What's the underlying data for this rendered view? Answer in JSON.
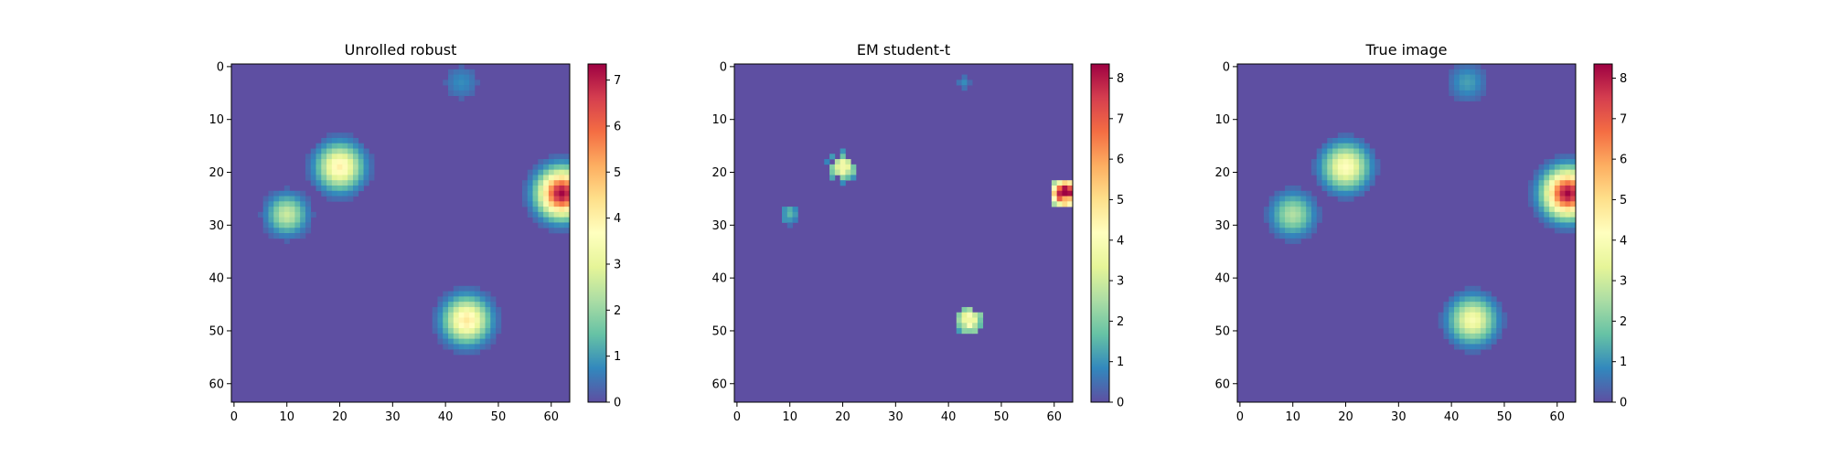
{
  "figure": {
    "panels": [
      {
        "title": "Unrolled robust"
      },
      {
        "title": "EM student-t"
      },
      {
        "title": "True image"
      }
    ]
  },
  "chart_data": [
    {
      "type": "heatmap",
      "title": "Unrolled robust",
      "grid_size": 64,
      "xlim": [
        -0.5,
        63.5
      ],
      "ylim": [
        63.5,
        -0.5
      ],
      "x_ticks": [
        0,
        10,
        20,
        30,
        40,
        50,
        60
      ],
      "y_ticks": [
        0,
        10,
        20,
        30,
        40,
        50,
        60
      ],
      "colormap": "Spectral_r",
      "background_color": "#5e4fa2",
      "colorbar": {
        "min": 0,
        "max": 7.35,
        "ticks": [
          0,
          1,
          2,
          3,
          4,
          5,
          6,
          7
        ]
      },
      "blobs": [
        {
          "x": 43,
          "y": 3,
          "peak": 0.8,
          "radius": 2.2,
          "shape": "gauss"
        },
        {
          "x": 20,
          "y": 19,
          "peak": 4.0,
          "radius": 2.8,
          "shape": "gauss"
        },
        {
          "x": 62,
          "y": 24,
          "peak": 7.3,
          "radius": 2.9,
          "shape": "gauss"
        },
        {
          "x": 10,
          "y": 28,
          "peak": 2.6,
          "radius": 2.4,
          "shape": "gauss"
        },
        {
          "x": 44,
          "y": 48,
          "peak": 4.2,
          "radius": 2.8,
          "shape": "gauss"
        }
      ]
    },
    {
      "type": "heatmap",
      "title": "EM student-t",
      "grid_size": 64,
      "xlim": [
        -0.5,
        63.5
      ],
      "ylim": [
        63.5,
        -0.5
      ],
      "x_ticks": [
        0,
        10,
        20,
        30,
        40,
        50,
        60
      ],
      "y_ticks": [
        0,
        10,
        20,
        30,
        40,
        50,
        60
      ],
      "colormap": "Spectral_r",
      "background_color": "#5e4fa2",
      "colorbar": {
        "min": 0,
        "max": 8.35,
        "ticks": [
          0,
          1,
          2,
          3,
          4,
          5,
          6,
          7,
          8
        ]
      },
      "blobs": [
        {
          "x": 43,
          "y": 3,
          "peak": 0.9,
          "radius": 1.2,
          "shape": "ragged"
        },
        {
          "x": 20,
          "y": 19,
          "peak": 3.8,
          "radius": 2.4,
          "shape": "ragged"
        },
        {
          "x": 62,
          "y": 24,
          "peak": 8.3,
          "radius": 2.6,
          "shape": "ragged"
        },
        {
          "x": 10,
          "y": 28,
          "peak": 1.8,
          "radius": 1.6,
          "shape": "ragged"
        },
        {
          "x": 44,
          "y": 48,
          "peak": 4.4,
          "radius": 2.3,
          "shape": "ragged"
        }
      ]
    },
    {
      "type": "heatmap",
      "title": "True image",
      "grid_size": 64,
      "xlim": [
        -0.5,
        63.5
      ],
      "ylim": [
        63.5,
        -0.5
      ],
      "x_ticks": [
        0,
        10,
        20,
        30,
        40,
        50,
        60
      ],
      "y_ticks": [
        0,
        10,
        20,
        30,
        40,
        50,
        60
      ],
      "colormap": "Spectral_r",
      "background_color": "#5e4fa2",
      "colorbar": {
        "min": 0,
        "max": 8.35,
        "ticks": [
          0,
          1,
          2,
          3,
          4,
          5,
          6,
          7,
          8
        ]
      },
      "blobs": [
        {
          "x": 43,
          "y": 3,
          "peak": 1.2,
          "radius": 2.3,
          "shape": "gauss"
        },
        {
          "x": 20,
          "y": 19,
          "peak": 4.2,
          "radius": 2.8,
          "shape": "gauss"
        },
        {
          "x": 62,
          "y": 24,
          "peak": 8.3,
          "radius": 2.9,
          "shape": "gauss"
        },
        {
          "x": 10,
          "y": 28,
          "peak": 2.6,
          "radius": 2.6,
          "shape": "gauss"
        },
        {
          "x": 44,
          "y": 48,
          "peak": 3.9,
          "radius": 2.8,
          "shape": "gauss"
        }
      ]
    }
  ]
}
